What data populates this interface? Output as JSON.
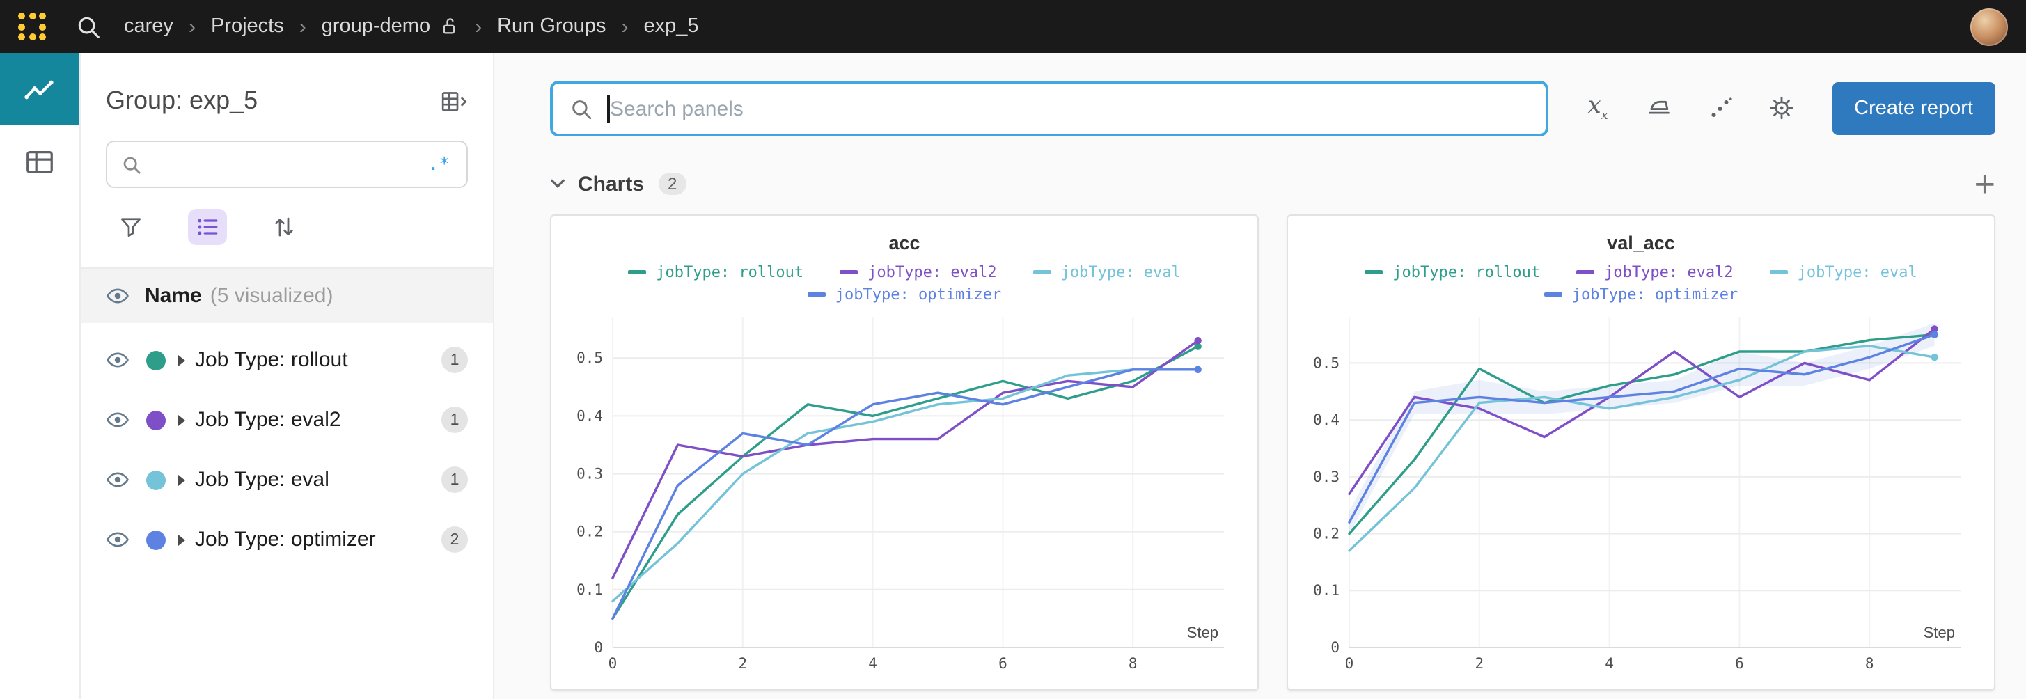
{
  "navbar": {
    "breadcrumb": [
      {
        "label": "carey",
        "lock": false
      },
      {
        "label": "Projects",
        "lock": false
      },
      {
        "label": "group-demo",
        "lock": true
      },
      {
        "label": "Run Groups",
        "lock": false
      },
      {
        "label": "exp_5",
        "lock": false
      }
    ],
    "separator": "›"
  },
  "sidebar": {
    "title": "Group: exp_5",
    "search": {
      "value": "",
      "placeholder": "",
      "regex_toggle": ".*"
    },
    "visibility_header": {
      "label": "Name",
      "sublabel": "(5 visualized)"
    },
    "runs": [
      {
        "label": "Job Type: rollout",
        "count": "1",
        "color": "#2e9e8b"
      },
      {
        "label": "Job Type: eval2",
        "count": "1",
        "color": "#7e4fc7"
      },
      {
        "label": "Job Type: eval",
        "count": "1",
        "color": "#75c3d8"
      },
      {
        "label": "Job Type: optimizer",
        "count": "2",
        "color": "#5d82e2"
      }
    ]
  },
  "main": {
    "panel_search": {
      "value": "",
      "placeholder": "Search panels"
    },
    "create_report_label": "Create report",
    "charts_section": {
      "title": "Charts",
      "count": "2",
      "add_glyph": "+"
    }
  },
  "colors": {
    "brand_yellow": "#ffcc33",
    "navbar_bg": "#1a1a1a",
    "rail_active_teal": "#15879d",
    "create_report_blue": "#2f7abf",
    "search_focus_border": "#42a6e0",
    "regex_blue": "#3aa0e8",
    "tool_active_purple_bg": "#e7defa"
  },
  "chart_data": [
    {
      "type": "line",
      "title": "acc",
      "xlabel": "Step",
      "ylabel": "",
      "xlim": [
        0,
        9.4
      ],
      "ylim": [
        0,
        0.57
      ],
      "xticks": [
        0,
        2,
        4,
        6,
        8
      ],
      "yticks": [
        0,
        0.1,
        0.2,
        0.3,
        0.4,
        0.5
      ],
      "grid": true,
      "legend_position": "top",
      "x": [
        0,
        1,
        2,
        3,
        4,
        5,
        6,
        7,
        8,
        9
      ],
      "series": [
        {
          "name": "jobType: rollout",
          "color": "#2e9e8b",
          "values": [
            0.05,
            0.23,
            0.33,
            0.42,
            0.4,
            0.43,
            0.46,
            0.43,
            0.46,
            0.52
          ]
        },
        {
          "name": "jobType: eval2",
          "color": "#7e4fc7",
          "values": [
            0.12,
            0.35,
            0.33,
            0.35,
            0.36,
            0.36,
            0.44,
            0.46,
            0.45,
            0.53
          ]
        },
        {
          "name": "jobType: eval",
          "color": "#75c3d8",
          "values": [
            0.08,
            0.18,
            0.3,
            0.37,
            0.39,
            0.42,
            0.43,
            0.47,
            0.48,
            0.48
          ]
        },
        {
          "name": "jobType: optimizer",
          "color": "#5d82e2",
          "values": [
            0.05,
            0.28,
            0.37,
            0.35,
            0.42,
            0.44,
            0.42,
            0.45,
            0.48,
            0.48
          ]
        }
      ]
    },
    {
      "type": "line",
      "title": "val_acc",
      "xlabel": "Step",
      "ylabel": "",
      "xlim": [
        0,
        9.4
      ],
      "ylim": [
        0,
        0.58
      ],
      "xticks": [
        0,
        2,
        4,
        6,
        8
      ],
      "yticks": [
        0,
        0.1,
        0.2,
        0.3,
        0.4,
        0.5
      ],
      "grid": true,
      "legend_position": "top",
      "x": [
        0,
        1,
        2,
        3,
        4,
        5,
        6,
        7,
        8,
        9
      ],
      "band": {
        "series": "jobType: optimizer",
        "color": "#5d82e2",
        "min": [
          0.2,
          0.41,
          0.41,
          0.41,
          0.42,
          0.43,
          0.46,
          0.46,
          0.49,
          0.53
        ],
        "max": [
          0.24,
          0.45,
          0.47,
          0.45,
          0.46,
          0.47,
          0.52,
          0.5,
          0.53,
          0.57
        ]
      },
      "series": [
        {
          "name": "jobType: rollout",
          "color": "#2e9e8b",
          "values": [
            0.2,
            0.33,
            0.49,
            0.43,
            0.46,
            0.48,
            0.52,
            0.52,
            0.54,
            0.55
          ]
        },
        {
          "name": "jobType: eval2",
          "color": "#7e4fc7",
          "values": [
            0.27,
            0.44,
            0.42,
            0.37,
            0.44,
            0.52,
            0.44,
            0.5,
            0.47,
            0.56
          ]
        },
        {
          "name": "jobType: eval",
          "color": "#75c3d8",
          "values": [
            0.17,
            0.28,
            0.43,
            0.44,
            0.42,
            0.44,
            0.47,
            0.52,
            0.53,
            0.51
          ]
        },
        {
          "name": "jobType: optimizer",
          "color": "#5d82e2",
          "values": [
            0.22,
            0.43,
            0.44,
            0.43,
            0.44,
            0.45,
            0.49,
            0.48,
            0.51,
            0.55
          ]
        }
      ]
    }
  ]
}
